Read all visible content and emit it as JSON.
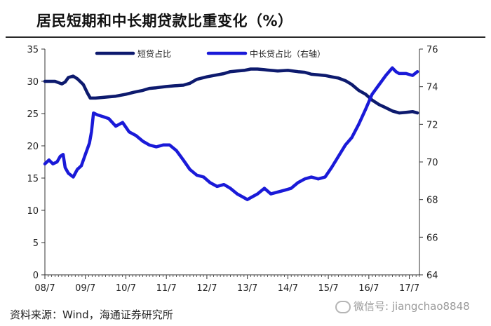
{
  "title": "居民短期和中长期贷款比重变化（%）",
  "source": "资料来源：Wind，海通证券研究所",
  "watermark": "微信号: jiangchao8848",
  "colors": {
    "short": "#0d1a6e",
    "long": "#1a1ad8",
    "axis": "#333333"
  },
  "chart_data": {
    "type": "line",
    "xlabel": "",
    "ylabel": "",
    "x_tick_labels": [
      "08/7",
      "09/7",
      "10/7",
      "11/7",
      "12/7",
      "13/7",
      "14/7",
      "15/7",
      "16/7",
      "17/7"
    ],
    "y_left": {
      "min": 0,
      "max": 35,
      "ticks": [
        0,
        5,
        10,
        15,
        20,
        25,
        30,
        35
      ]
    },
    "y_right": {
      "min": 64,
      "max": 76,
      "ticks": [
        64,
        66,
        68,
        70,
        72,
        74,
        76
      ]
    },
    "legend_position": "top",
    "series": [
      {
        "name": "短贷占比",
        "axis": "left",
        "points": [
          [
            2008.5,
            30.0
          ],
          [
            2008.75,
            30.0
          ],
          [
            2008.92,
            29.6
          ],
          [
            2009.0,
            29.9
          ],
          [
            2009.08,
            30.6
          ],
          [
            2009.2,
            30.8
          ],
          [
            2009.3,
            30.4
          ],
          [
            2009.45,
            29.5
          ],
          [
            2009.55,
            28.2
          ],
          [
            2009.62,
            27.4
          ],
          [
            2009.75,
            27.4
          ],
          [
            2009.92,
            27.5
          ],
          [
            2010.08,
            27.6
          ],
          [
            2010.25,
            27.7
          ],
          [
            2010.5,
            28.0
          ],
          [
            2010.7,
            28.3
          ],
          [
            2010.92,
            28.6
          ],
          [
            2011.08,
            28.9
          ],
          [
            2011.25,
            29.0
          ],
          [
            2011.5,
            29.2
          ],
          [
            2011.7,
            29.3
          ],
          [
            2011.92,
            29.4
          ],
          [
            2012.08,
            29.7
          ],
          [
            2012.25,
            30.3
          ],
          [
            2012.5,
            30.7
          ],
          [
            2012.75,
            31.0
          ],
          [
            2012.92,
            31.2
          ],
          [
            2013.08,
            31.5
          ],
          [
            2013.25,
            31.6
          ],
          [
            2013.42,
            31.7
          ],
          [
            2013.58,
            31.9
          ],
          [
            2013.75,
            31.9
          ],
          [
            2013.92,
            31.8
          ],
          [
            2014.08,
            31.7
          ],
          [
            2014.25,
            31.6
          ],
          [
            2014.5,
            31.7
          ],
          [
            2014.75,
            31.5
          ],
          [
            2014.92,
            31.4
          ],
          [
            2015.08,
            31.1
          ],
          [
            2015.25,
            31.0
          ],
          [
            2015.42,
            30.9
          ],
          [
            2015.58,
            30.7
          ],
          [
            2015.75,
            30.5
          ],
          [
            2015.92,
            30.1
          ],
          [
            2016.08,
            29.5
          ],
          [
            2016.25,
            28.6
          ],
          [
            2016.42,
            28.0
          ],
          [
            2016.58,
            27.1
          ],
          [
            2016.75,
            26.4
          ],
          [
            2016.92,
            25.9
          ],
          [
            2017.08,
            25.4
          ],
          [
            2017.25,
            25.1
          ],
          [
            2017.42,
            25.2
          ],
          [
            2017.58,
            25.3
          ],
          [
            2017.7,
            25.1
          ]
        ]
      },
      {
        "name": "中长贷占比（右轴）",
        "axis": "right",
        "points": [
          [
            2008.5,
            69.9
          ],
          [
            2008.6,
            70.1
          ],
          [
            2008.7,
            69.9
          ],
          [
            2008.8,
            70.0
          ],
          [
            2008.88,
            70.3
          ],
          [
            2008.95,
            70.4
          ],
          [
            2009.0,
            69.7
          ],
          [
            2009.08,
            69.4
          ],
          [
            2009.2,
            69.2
          ],
          [
            2009.3,
            69.6
          ],
          [
            2009.4,
            69.8
          ],
          [
            2009.5,
            70.4
          ],
          [
            2009.6,
            71.0
          ],
          [
            2009.65,
            71.6
          ],
          [
            2009.7,
            72.6
          ],
          [
            2009.8,
            72.5
          ],
          [
            2009.95,
            72.4
          ],
          [
            2010.08,
            72.3
          ],
          [
            2010.25,
            71.9
          ],
          [
            2010.42,
            72.1
          ],
          [
            2010.58,
            71.6
          ],
          [
            2010.75,
            71.4
          ],
          [
            2010.92,
            71.1
          ],
          [
            2011.08,
            70.9
          ],
          [
            2011.25,
            70.8
          ],
          [
            2011.42,
            70.9
          ],
          [
            2011.58,
            70.9
          ],
          [
            2011.75,
            70.6
          ],
          [
            2011.92,
            70.1
          ],
          [
            2012.08,
            69.6
          ],
          [
            2012.25,
            69.3
          ],
          [
            2012.42,
            69.2
          ],
          [
            2012.58,
            68.9
          ],
          [
            2012.75,
            68.7
          ],
          [
            2012.92,
            68.8
          ],
          [
            2013.08,
            68.6
          ],
          [
            2013.25,
            68.3
          ],
          [
            2013.42,
            68.1
          ],
          [
            2013.5,
            68.0
          ],
          [
            2013.58,
            68.1
          ],
          [
            2013.75,
            68.3
          ],
          [
            2013.92,
            68.6
          ],
          [
            2014.08,
            68.3
          ],
          [
            2014.25,
            68.4
          ],
          [
            2014.42,
            68.5
          ],
          [
            2014.58,
            68.6
          ],
          [
            2014.75,
            68.9
          ],
          [
            2014.92,
            69.1
          ],
          [
            2015.08,
            69.2
          ],
          [
            2015.25,
            69.1
          ],
          [
            2015.42,
            69.2
          ],
          [
            2015.58,
            69.7
          ],
          [
            2015.75,
            70.3
          ],
          [
            2015.92,
            70.9
          ],
          [
            2016.08,
            71.3
          ],
          [
            2016.25,
            72.0
          ],
          [
            2016.42,
            72.8
          ],
          [
            2016.58,
            73.6
          ],
          [
            2016.75,
            74.1
          ],
          [
            2016.92,
            74.6
          ],
          [
            2017.0,
            74.8
          ],
          [
            2017.08,
            75.0
          ],
          [
            2017.17,
            74.8
          ],
          [
            2017.25,
            74.7
          ],
          [
            2017.42,
            74.7
          ],
          [
            2017.58,
            74.6
          ],
          [
            2017.7,
            74.8
          ]
        ]
      }
    ]
  }
}
